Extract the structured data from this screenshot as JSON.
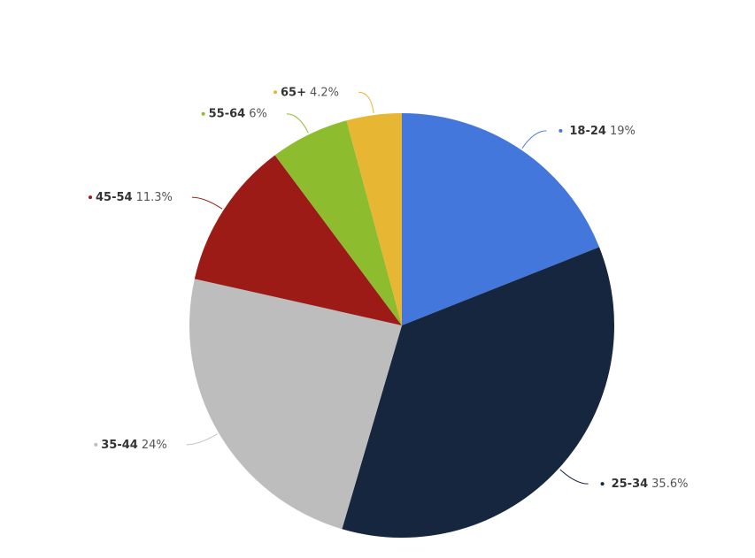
{
  "chart_data": {
    "type": "pie",
    "categories": [
      "18-24",
      "25-34",
      "35-44",
      "45-54",
      "55-64",
      "65+"
    ],
    "values": [
      19,
      35.6,
      24,
      11.3,
      6,
      4.2
    ],
    "value_labels": [
      "19%",
      "35.6%",
      "24%",
      "11.3%",
      "6%",
      "4.2%"
    ],
    "colors": [
      "#4477db",
      "#17263f",
      "#bdbdbd",
      "#9c1b16",
      "#8dbc2e",
      "#e7b733"
    ]
  }
}
